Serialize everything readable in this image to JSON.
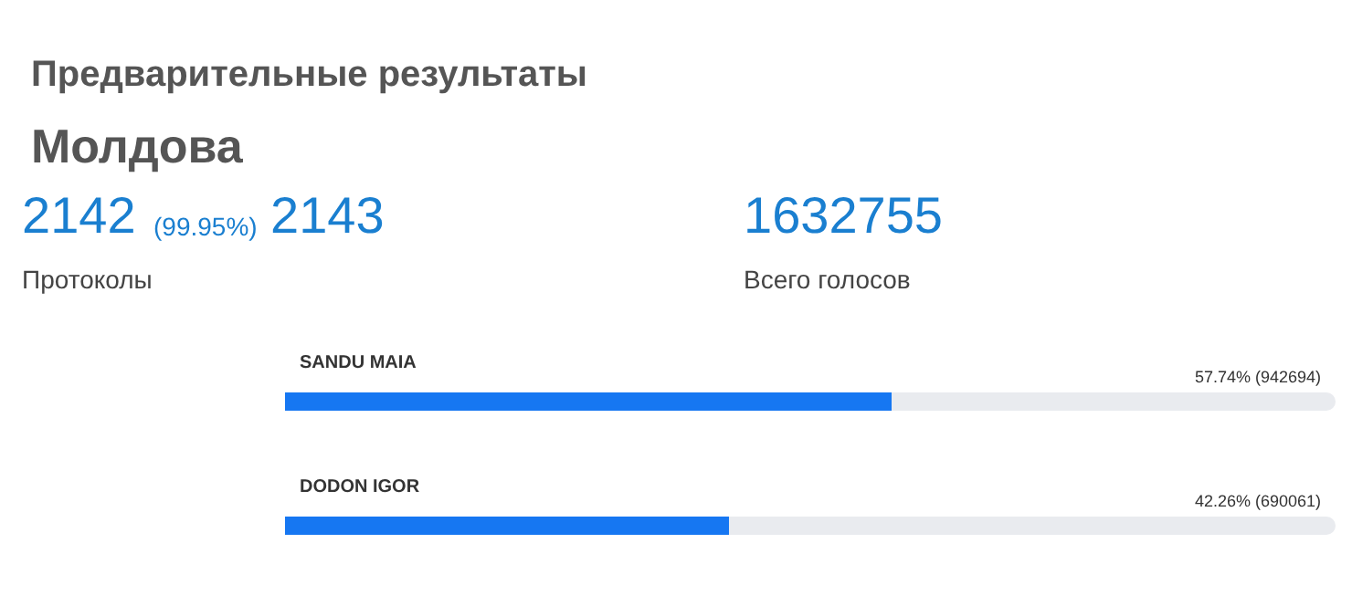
{
  "chart_data": {
    "type": "bar",
    "orientation": "horizontal",
    "title": "Предварительные результаты",
    "subtitle": "Молдова",
    "categories": [
      "SANDU MAIA",
      "DODON IGOR"
    ],
    "values": [
      57.74,
      42.26
    ],
    "value_labels": [
      "57.74% (942694)",
      "42.26% (690061)"
    ],
    "color": "#1677f2",
    "xlim": [
      0,
      100
    ],
    "annotations": [
      "2142",
      "(99.95%)",
      "2143",
      "Протоколы",
      "1632755",
      "Всего голосов"
    ]
  }
}
